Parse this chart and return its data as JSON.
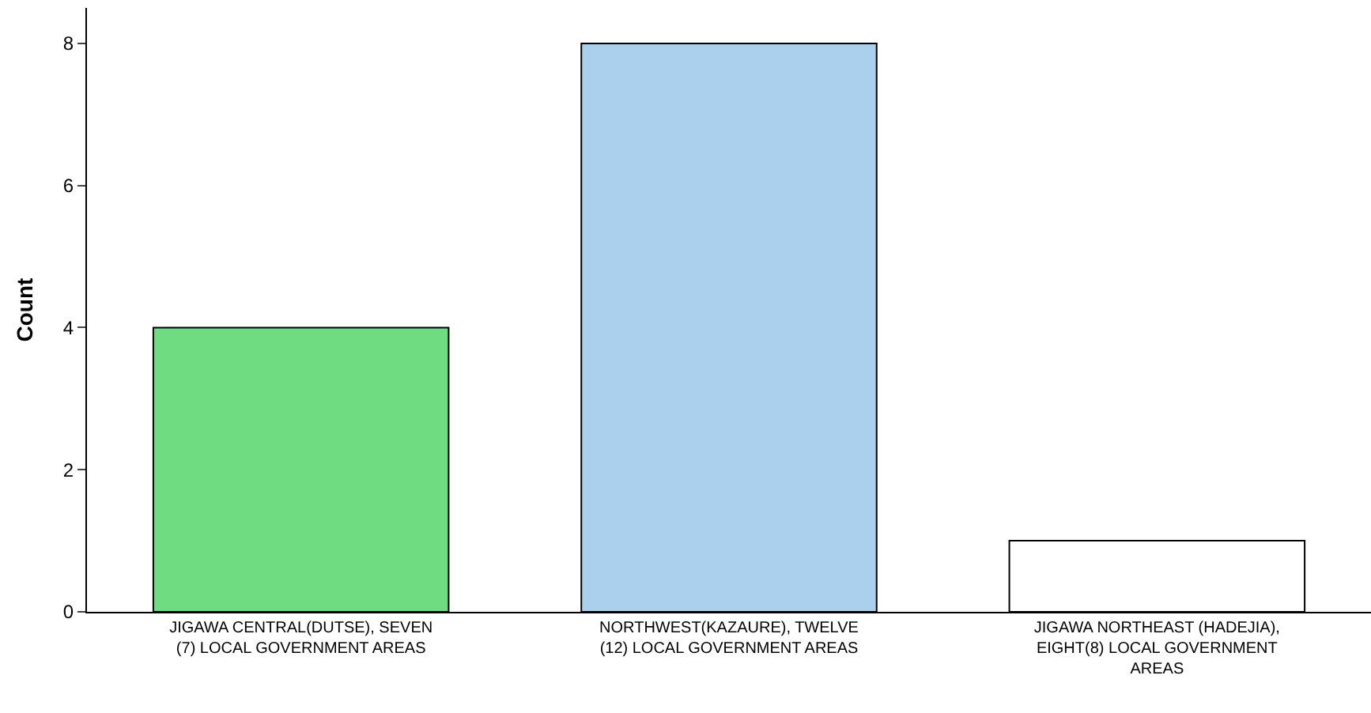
{
  "chart_data": {
    "type": "bar",
    "ylabel": "Count",
    "categories": [
      "JIGAWA CENTRAL(DUTSE), SEVEN (7) LOCAL GOVERNMENT AREAS",
      "NORTHWEST(KAZAURE), TWELVE (12) LOCAL GOVERNMENT AREAS",
      "JIGAWA NORTHEAST (HADEJIA), EIGHT(8) LOCAL GOVERNMENT AREAS"
    ],
    "values": [
      4,
      8,
      1
    ],
    "colors": [
      "#70dc82",
      "#abd0ee",
      "#ffffff"
    ],
    "ylim": [
      0,
      8.5
    ],
    "yticks": [
      0,
      2,
      4,
      6,
      8
    ]
  }
}
